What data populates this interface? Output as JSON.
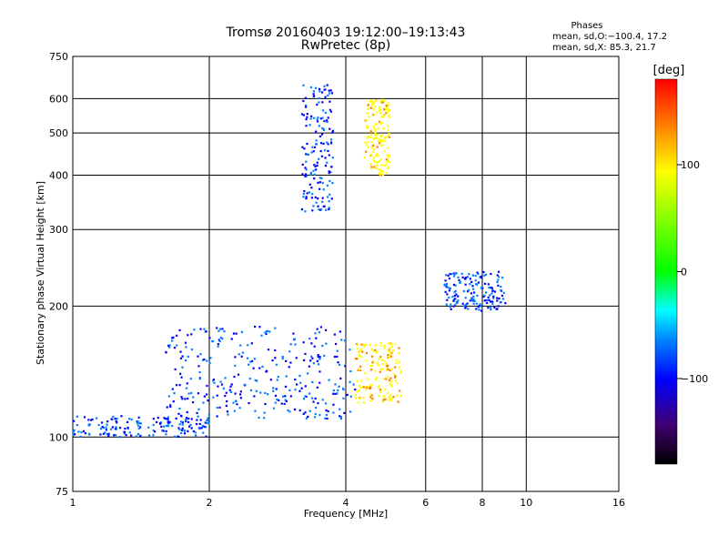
{
  "chart_data": {
    "type": "scatter",
    "title": "Tromsø 20160403 19:12:00–19:13:43",
    "subtitle": "RwPretec (8p)",
    "xlabel": "Frequency [MHz]",
    "ylabel": "Stationary phase Virtual Height [km]",
    "x_scale": "log",
    "y_scale": "log",
    "xlim": [
      1,
      16
    ],
    "ylim": [
      75,
      750
    ],
    "x_ticks": [
      1,
      2,
      4,
      6,
      8,
      10,
      16
    ],
    "x_tick_labels": [
      "1",
      "2",
      "4",
      "6",
      "8",
      "10",
      "16"
    ],
    "y_ticks": [
      75,
      100,
      200,
      300,
      400,
      500,
      600,
      750
    ],
    "y_tick_labels": [
      "75",
      "100",
      "200",
      "300",
      "400",
      "500",
      "600",
      "750"
    ],
    "grid": true,
    "legend": {
      "title": "Phases",
      "lines": [
        "mean, sd,O:−100.4, 17.2",
        "mean, sd,X: 85.3, 21.7"
      ],
      "placement": "top-right"
    },
    "colorbar": {
      "label": "[deg]",
      "ticks": [
        100,
        0,
        -100
      ],
      "tick_labels": [
        "100",
        "0",
        "−100"
      ],
      "range": [
        -180,
        180
      ],
      "placement": "right"
    },
    "point_groups": [
      {
        "name_hint": "E-layer",
        "x_range": [
          1.0,
          2.0
        ],
        "y_range": [
          100,
          112
        ],
        "phase": -100
      },
      {
        "name_hint": "F1 low trace",
        "x_range": [
          1.6,
          4.2
        ],
        "y_range": [
          110,
          135
        ],
        "phase": -100
      },
      {
        "name_hint": "F1 upper trace",
        "x_range": [
          1.6,
          4.1
        ],
        "y_range": [
          135,
          180
        ],
        "phase": -100
      },
      {
        "name_hint": "F2 O-trace cusp",
        "x_range": [
          3.2,
          3.75
        ],
        "y_range": [
          330,
          650
        ],
        "phase": -100
      },
      {
        "name_hint": "X-trace",
        "x_range": [
          4.2,
          5.3
        ],
        "y_range": [
          120,
          165
        ],
        "phase": 85
      },
      {
        "name_hint": "X upper",
        "x_range": [
          4.4,
          5.0
        ],
        "y_range": [
          400,
          600
        ],
        "phase": 80
      },
      {
        "name_hint": "F layer 8MHz",
        "x_range": [
          6.6,
          9.0
        ],
        "y_range": [
          195,
          240
        ],
        "phase": -100
      }
    ]
  }
}
